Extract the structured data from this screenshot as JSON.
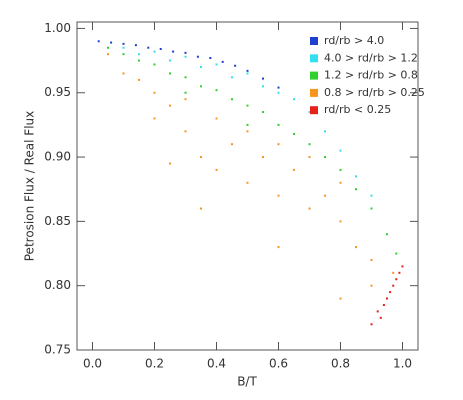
{
  "chart_data": {
    "type": "scatter",
    "xlabel": "B/T",
    "ylabel": "Petrosion Flux / Real Flux",
    "xlim": [
      -0.05,
      1.05
    ],
    "ylim": [
      0.75,
      1.005
    ],
    "xticks": [
      {
        "value": 0,
        "label": "0.0"
      },
      0.2,
      0.4,
      0.6,
      0.8,
      {
        "value": 1,
        "label": "1.0"
      }
    ],
    "yticks": [
      0.75,
      {
        "value": 0.8,
        "label": "0.80"
      },
      0.85,
      {
        "value": 0.9,
        "label": "0.90"
      },
      0.95,
      {
        "value": 1,
        "label": "1.00"
      }
    ],
    "legend": "upper right",
    "series": [
      {
        "name": "rd/rb > 4.0",
        "color": "#1f3fd0",
        "x": [
          0.02,
          0.06,
          0.1,
          0.14,
          0.18,
          0.22,
          0.26,
          0.3,
          0.34,
          0.38,
          0.42,
          0.46,
          0.5,
          0.55,
          0.6
        ],
        "values": [
          0.99,
          0.989,
          0.988,
          0.987,
          0.985,
          0.984,
          0.982,
          0.981,
          0.978,
          0.977,
          0.974,
          0.971,
          0.967,
          0.961,
          0.954
        ]
      },
      {
        "name": "4.0 > rd/rb > 1.2",
        "color": "#33e0f0",
        "x": [
          0.1,
          0.15,
          0.2,
          0.25,
          0.3,
          0.35,
          0.4,
          0.45,
          0.5,
          0.55,
          0.6,
          0.65,
          0.7,
          0.75,
          0.8,
          0.85,
          0.9
        ],
        "values": [
          0.985,
          0.98,
          0.982,
          0.975,
          0.978,
          0.97,
          0.972,
          0.962,
          0.965,
          0.955,
          0.95,
          0.945,
          0.935,
          0.92,
          0.905,
          0.885,
          0.87
        ]
      },
      {
        "name": "1.2 > rd/rb > 0.8",
        "color": "#2ed12e",
        "x": [
          0.05,
          0.1,
          0.15,
          0.2,
          0.25,
          0.3,
          0.35,
          0.4,
          0.45,
          0.5,
          0.55,
          0.6,
          0.65,
          0.7,
          0.75,
          0.8,
          0.85,
          0.9,
          0.95,
          0.98,
          0.3,
          0.5
        ],
        "values": [
          0.985,
          0.98,
          0.975,
          0.972,
          0.965,
          0.962,
          0.955,
          0.952,
          0.945,
          0.94,
          0.935,
          0.925,
          0.918,
          0.91,
          0.9,
          0.89,
          0.875,
          0.86,
          0.84,
          0.825,
          0.95,
          0.925
        ]
      },
      {
        "name": "0.8 > rd/rb > 0.25",
        "color": "#f7941d",
        "x": [
          0.05,
          0.1,
          0.15,
          0.2,
          0.2,
          0.25,
          0.3,
          0.3,
          0.35,
          0.4,
          0.4,
          0.45,
          0.5,
          0.5,
          0.55,
          0.6,
          0.6,
          0.65,
          0.7,
          0.7,
          0.75,
          0.8,
          0.8,
          0.85,
          0.9,
          0.9,
          0.95,
          0.97,
          0.35,
          0.25,
          0.6,
          0.8
        ],
        "values": [
          0.98,
          0.965,
          0.96,
          0.95,
          0.93,
          0.94,
          0.92,
          0.945,
          0.9,
          0.93,
          0.89,
          0.91,
          0.92,
          0.88,
          0.9,
          0.91,
          0.87,
          0.89,
          0.86,
          0.9,
          0.87,
          0.85,
          0.88,
          0.83,
          0.82,
          0.8,
          0.79,
          0.81,
          0.86,
          0.895,
          0.83,
          0.79
        ]
      },
      {
        "name": "rd/rb < 0.25",
        "color": "#e8201a",
        "x": [
          0.9,
          0.92,
          0.93,
          0.94,
          0.95,
          0.96,
          0.97,
          0.98,
          0.99,
          1.0
        ],
        "values": [
          0.77,
          0.78,
          0.775,
          0.785,
          0.79,
          0.795,
          0.8,
          0.805,
          0.81,
          0.815
        ]
      }
    ]
  }
}
